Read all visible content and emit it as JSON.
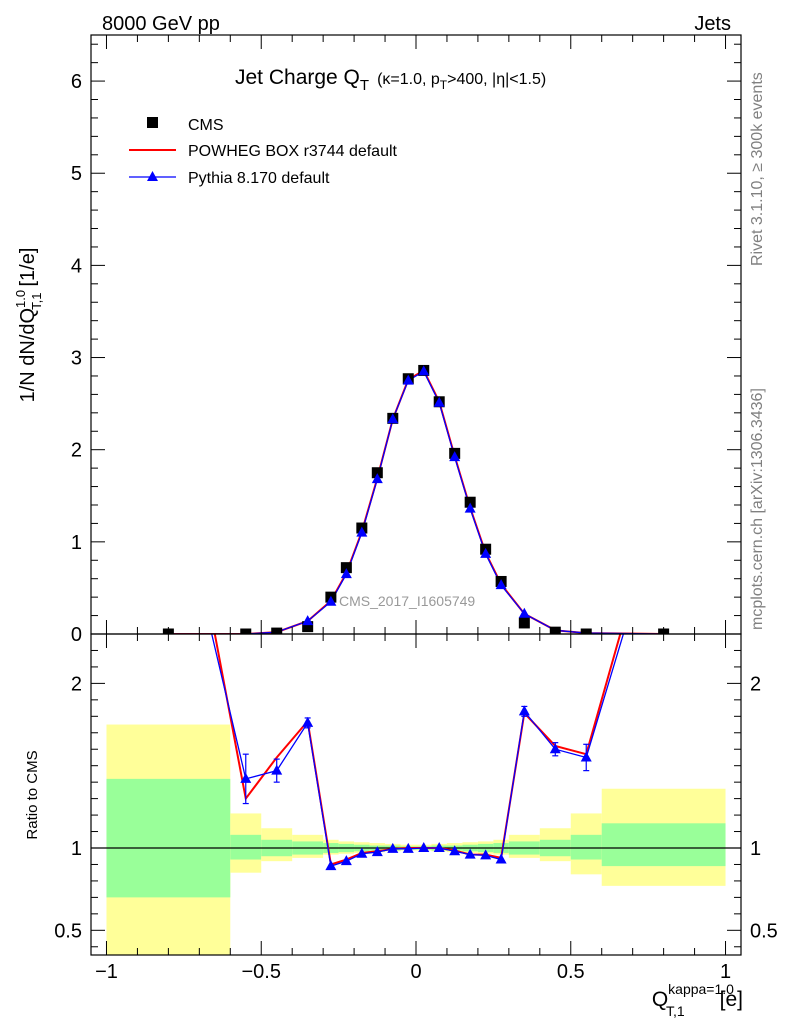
{
  "header": {
    "left": "8000 GeV pp",
    "right": "Jets"
  },
  "side_text": {
    "rivet": "Rivet 3.1.10, ≥ 300k events",
    "mcplots": "mcplots.cern.ch [arXiv:1306.3436]"
  },
  "chart_data": [
    {
      "type": "scatter",
      "title": "Jet Charge Q",
      "title_sub": "T",
      "title_detail": "(κ=1.0, p",
      "title_detail_sub": "T",
      "title_detail_rest": ">400, |η|<1.5)",
      "watermark": "CMS_2017_I1605749",
      "ylabel": "1/N dN/dQ",
      "ylabel_sup": "1.0",
      "ylabel_sub": "T,1",
      "ylabel_unit": "[1/e]",
      "xlim": [
        -1.05,
        1.05
      ],
      "ylim": [
        0,
        6.5
      ],
      "y_ticks": [
        0,
        1,
        2,
        3,
        4,
        5,
        6
      ],
      "y_tick_labels": [
        "0",
        "1",
        "2",
        "3",
        "4",
        "5",
        "6"
      ],
      "legend_position": "top-left",
      "grid": false,
      "series": [
        {
          "name": "CMS",
          "style": "markers",
          "marker": "square",
          "color": "#000000",
          "x": [
            -0.8,
            -0.55,
            -0.45,
            -0.35,
            -0.275,
            -0.225,
            -0.175,
            -0.125,
            -0.075,
            -0.025,
            0.025,
            0.075,
            0.125,
            0.175,
            0.225,
            0.275,
            0.35,
            0.45,
            0.55,
            0.8
          ],
          "values": [
            0.0,
            0.0,
            0.01,
            0.08,
            0.4,
            0.72,
            1.15,
            1.75,
            2.34,
            2.77,
            2.86,
            2.52,
            1.96,
            1.43,
            0.92,
            0.57,
            0.12,
            0.02,
            0.0,
            0.0
          ]
        },
        {
          "name": "POWHEG BOX r3744 default",
          "style": "line",
          "color": "#ff0000",
          "x": [
            -0.8,
            -0.55,
            -0.45,
            -0.35,
            -0.275,
            -0.225,
            -0.175,
            -0.125,
            -0.075,
            -0.025,
            0.025,
            0.075,
            0.125,
            0.175,
            0.225,
            0.275,
            0.35,
            0.45,
            0.55,
            0.8
          ],
          "values": [
            0.0,
            0.0,
            0.02,
            0.14,
            0.36,
            0.66,
            1.11,
            1.69,
            2.33,
            2.76,
            2.86,
            2.52,
            1.93,
            1.37,
            0.88,
            0.54,
            0.22,
            0.04,
            0.01,
            0.0
          ]
        },
        {
          "name": "Pythia 8.170 default",
          "style": "line+markers",
          "marker": "triangle",
          "color": "#0000ff",
          "x": [
            -0.8,
            -0.55,
            -0.45,
            -0.35,
            -0.275,
            -0.225,
            -0.175,
            -0.125,
            -0.075,
            -0.025,
            0.025,
            0.075,
            0.125,
            0.175,
            0.225,
            0.275,
            0.35,
            0.45,
            0.55,
            0.8
          ],
          "values": [
            0.0,
            0.0,
            0.02,
            0.14,
            0.35,
            0.65,
            1.1,
            1.68,
            2.33,
            2.75,
            2.85,
            2.51,
            1.92,
            1.36,
            0.87,
            0.53,
            0.22,
            0.04,
            0.01,
            0.0
          ]
        }
      ]
    },
    {
      "type": "scatter",
      "ylabel": "Ratio to CMS",
      "xlabel": "Q",
      "xlabel_sup": "kappa=1.0",
      "xlabel_sub": "T,1",
      "xlabel_unit": "[e]",
      "xlim": [
        -1.05,
        1.05
      ],
      "ylim": [
        0.35,
        2.3
      ],
      "x_ticks": [
        -1,
        -0.5,
        0,
        0.5,
        1
      ],
      "x_tick_labels": [
        "−1",
        "−0.5",
        "0",
        "0.5",
        "1"
      ],
      "y_ticks": [
        0.5,
        1,
        2
      ],
      "y_tick_labels": [
        "0.5",
        "1",
        "2"
      ],
      "reference_line": 1,
      "bands": {
        "edges": [
          -1.0,
          -0.6,
          -0.5,
          -0.4,
          -0.3,
          -0.25,
          -0.2,
          -0.15,
          -0.1,
          -0.05,
          0.0,
          0.05,
          0.1,
          0.15,
          0.2,
          0.25,
          0.3,
          0.4,
          0.5,
          0.6,
          1.0
        ],
        "inner": [
          [
            0.7,
            1.42
          ],
          [
            0.93,
            1.08
          ],
          [
            0.95,
            1.05
          ],
          [
            0.96,
            1.04
          ],
          [
            0.97,
            1.03
          ],
          [
            0.975,
            1.025
          ],
          [
            0.98,
            1.02
          ],
          [
            0.985,
            1.015
          ],
          [
            0.985,
            1.015
          ],
          [
            0.99,
            1.01
          ],
          [
            0.99,
            1.01
          ],
          [
            0.985,
            1.015
          ],
          [
            0.985,
            1.015
          ],
          [
            0.98,
            1.02
          ],
          [
            0.975,
            1.025
          ],
          [
            0.97,
            1.03
          ],
          [
            0.96,
            1.04
          ],
          [
            0.95,
            1.05
          ],
          [
            0.93,
            1.08
          ],
          [
            0.89,
            1.15
          ]
        ],
        "outer": [
          [
            0.35,
            1.75
          ],
          [
            0.85,
            1.21
          ],
          [
            0.92,
            1.12
          ],
          [
            0.94,
            1.08
          ],
          [
            0.96,
            1.05
          ],
          [
            0.965,
            1.04
          ],
          [
            0.97,
            1.035
          ],
          [
            0.975,
            1.03
          ],
          [
            0.98,
            1.025
          ],
          [
            0.985,
            1.02
          ],
          [
            0.985,
            1.02
          ],
          [
            0.98,
            1.025
          ],
          [
            0.975,
            1.03
          ],
          [
            0.97,
            1.035
          ],
          [
            0.965,
            1.04
          ],
          [
            0.96,
            1.05
          ],
          [
            0.94,
            1.08
          ],
          [
            0.92,
            1.12
          ],
          [
            0.84,
            1.21
          ],
          [
            0.77,
            1.36
          ]
        ],
        "inner_color": "#99ff99",
        "outer_color": "#ffff99"
      },
      "series": [
        {
          "name": "POWHEG BOX r3744 default",
          "style": "line",
          "color": "#ff0000",
          "x": [
            -0.65,
            -0.55,
            -0.45,
            -0.35,
            -0.275,
            -0.225,
            -0.175,
            -0.125,
            -0.075,
            -0.025,
            0.025,
            0.075,
            0.125,
            0.175,
            0.225,
            0.275,
            0.35,
            0.45,
            0.55,
            0.66
          ],
          "values": [
            2.3,
            1.3,
            1.55,
            1.77,
            0.9,
            0.93,
            0.97,
            0.98,
            0.995,
            1.0,
            1.0,
            1.0,
            0.985,
            0.96,
            0.96,
            0.94,
            1.82,
            1.62,
            1.57,
            2.3
          ]
        },
        {
          "name": "Pythia 8.170 default",
          "style": "line+markers",
          "marker": "triangle",
          "color": "#0000ff",
          "x": [
            -0.66,
            -0.55,
            -0.45,
            -0.35,
            -0.275,
            -0.225,
            -0.175,
            -0.125,
            -0.075,
            -0.025,
            0.025,
            0.075,
            0.125,
            0.175,
            0.225,
            0.275,
            0.35,
            0.45,
            0.55,
            0.67
          ],
          "values": [
            2.3,
            1.42,
            1.47,
            1.76,
            0.89,
            0.92,
            0.965,
            0.975,
            0.995,
            0.995,
            1.0,
            1.0,
            0.98,
            0.96,
            0.955,
            0.93,
            1.83,
            1.6,
            1.55,
            2.3
          ],
          "errors": [
            0,
            0.15,
            0.07,
            0.03,
            0,
            0,
            0,
            0,
            0,
            0,
            0,
            0,
            0,
            0,
            0,
            0,
            0.03,
            0.04,
            0.08,
            0
          ]
        }
      ]
    }
  ]
}
